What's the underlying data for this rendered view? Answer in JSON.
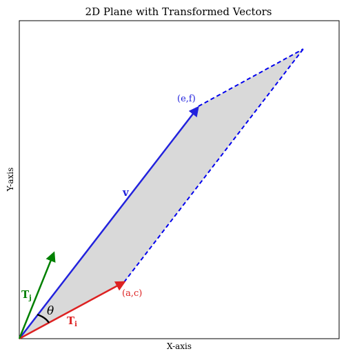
{
  "figure": {
    "title": "2D Plane with Transformed Vectors",
    "xlabel": "X-axis",
    "ylabel": "Y-axis"
  },
  "labels": {
    "point_ac": "(a,c)",
    "point_ef": "(e,f)",
    "vector_v": "v",
    "vector_ti_main": "T",
    "vector_ti_sub": "i",
    "vector_tj_main": "T",
    "vector_tj_sub": "j",
    "angle": "θ"
  },
  "colors": {
    "ti": "#dd2222",
    "tj": "#008000",
    "v": "#2222dd",
    "dashed": "#0000ee",
    "fill": "#d9d9d9",
    "frame": "#000000"
  }
}
